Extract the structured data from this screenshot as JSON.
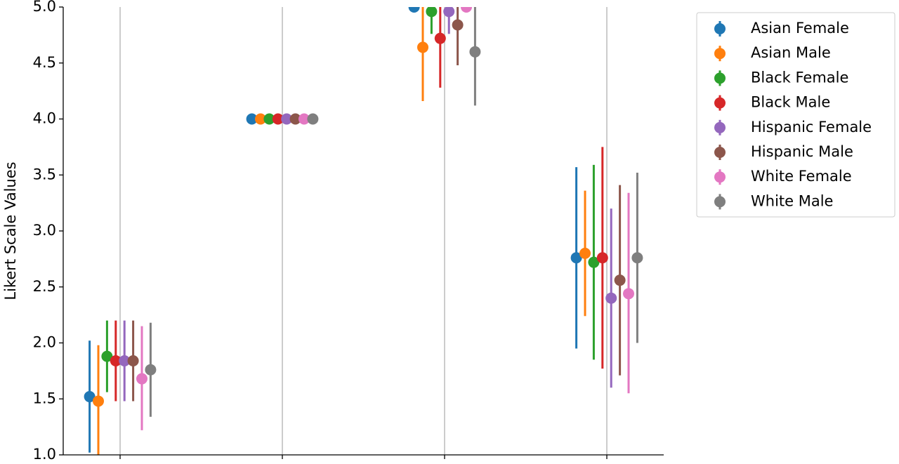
{
  "chart_data": {
    "type": "pointplot",
    "ylabel": "Likert Scale Values",
    "categories": [
      null,
      null,
      null,
      null
    ],
    "ylim": [
      1,
      5
    ],
    "yticks": [
      {
        "value": 1,
        "label": "1.0"
      },
      1.5,
      {
        "value": 2,
        "label": "2.0"
      },
      2.5,
      {
        "value": 3,
        "label": "3.0"
      },
      3.5,
      {
        "value": 4,
        "label": "4.0"
      },
      4.5,
      {
        "value": 5,
        "label": "5.0"
      }
    ],
    "grid": "x",
    "legend": "outside-upper-right",
    "series": [
      {
        "name": "Asian Female",
        "color": "#1f77b4",
        "values": [
          1.52,
          4.0,
          5.0,
          2.76
        ],
        "ci_low": [
          1.02,
          4.0,
          5.0,
          1.95
        ],
        "ci_high": [
          2.02,
          4.0,
          5.0,
          3.57
        ]
      },
      {
        "name": "Asian Male",
        "color": "#ff7f0e",
        "values": [
          1.48,
          4.0,
          4.64,
          2.8
        ],
        "ci_low": [
          1.0,
          4.0,
          4.16,
          2.24
        ],
        "ci_high": [
          1.98,
          4.0,
          5.0,
          3.36
        ]
      },
      {
        "name": "Black Female",
        "color": "#2ca02c",
        "values": [
          1.88,
          4.0,
          4.96,
          2.72
        ],
        "ci_low": [
          1.56,
          4.0,
          4.76,
          1.85
        ],
        "ci_high": [
          2.2,
          4.0,
          5.0,
          3.59
        ]
      },
      {
        "name": "Black Male",
        "color": "#d62728",
        "values": [
          1.84,
          4.0,
          4.72,
          2.76
        ],
        "ci_low": [
          1.48,
          4.0,
          4.28,
          1.77
        ],
        "ci_high": [
          2.2,
          4.0,
          5.0,
          3.75
        ]
      },
      {
        "name": "Hispanic Female",
        "color": "#9467bd",
        "values": [
          1.84,
          4.0,
          4.96,
          2.4
        ],
        "ci_low": [
          1.48,
          4.0,
          4.76,
          1.6
        ],
        "ci_high": [
          2.2,
          4.0,
          5.0,
          3.2
        ]
      },
      {
        "name": "Hispanic Male",
        "color": "#8c564b",
        "values": [
          1.84,
          4.0,
          4.84,
          2.56
        ],
        "ci_low": [
          1.48,
          4.0,
          4.48,
          1.71
        ],
        "ci_high": [
          2.2,
          4.0,
          5.0,
          3.41
        ]
      },
      {
        "name": "White Female",
        "color": "#e377c2",
        "values": [
          1.68,
          4.0,
          5.0,
          2.44
        ],
        "ci_low": [
          1.22,
          4.0,
          5.0,
          1.55
        ],
        "ci_high": [
          2.15,
          4.0,
          5.0,
          3.34
        ]
      },
      {
        "name": "White Male",
        "color": "#7f7f7f",
        "values": [
          1.76,
          4.0,
          4.6,
          2.76
        ],
        "ci_low": [
          1.34,
          4.0,
          4.12,
          2.0
        ],
        "ci_high": [
          2.18,
          4.0,
          5.0,
          3.52
        ]
      }
    ]
  }
}
